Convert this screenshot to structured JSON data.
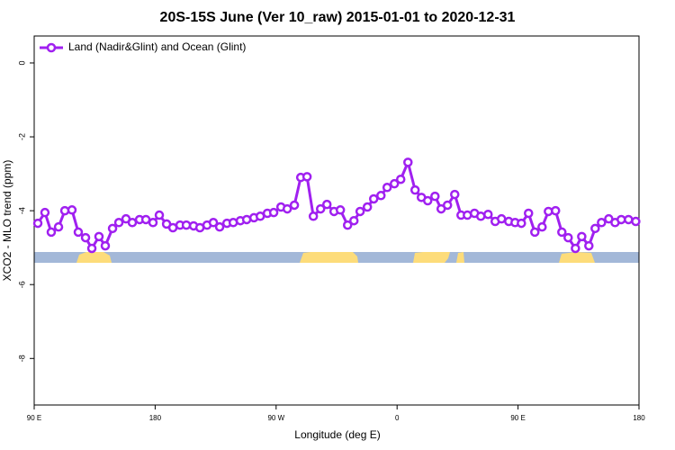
{
  "chart_data": {
    "type": "line",
    "title": "20S-15S June (Ver 10_raw)   2015-01-01 to 2020-12-31",
    "xlabel": "Longitude (deg E)",
    "ylabel": "XCO2 - MLO trend (ppm)",
    "xlim": [
      90,
      540
    ],
    "ylim": [
      -9.26,
      0.73
    ],
    "xticks": [
      {
        "value": 90,
        "label": "90 E"
      },
      {
        "value": 180,
        "label": "180"
      },
      {
        "value": 270,
        "label": "90 W"
      },
      {
        "value": 360,
        "label": "0"
      },
      {
        "value": 450,
        "label": "90 E"
      },
      {
        "value": 540,
        "label": "180"
      }
    ],
    "yticks": [
      0,
      -2,
      -4,
      -6,
      -8
    ],
    "legend": "upper left",
    "series": [
      {
        "name": "Land (Nadir&Glint) and Ocean (Glint)",
        "color": "#a020f0",
        "x": [
          92.7,
          98,
          102.7,
          108.1,
          112.8,
          118.1,
          122.8,
          128.2,
          132.9,
          138.2,
          142.9,
          148.3,
          153,
          158.3,
          163,
          168.4,
          173.1,
          178.4,
          183.1,
          188.5,
          193.2,
          198.5,
          203.2,
          208.6,
          213.3,
          218.6,
          223.3,
          228,
          233.4,
          238.1,
          243.4,
          248.1,
          253.5,
          258.2,
          263.5,
          268.2,
          273.6,
          278.3,
          283.6,
          288.3,
          293,
          297.7,
          303.1,
          307.8,
          313.1,
          317.8,
          323.2,
          327.9,
          332.5,
          337.9,
          342.6,
          348,
          352.6,
          358,
          362.7,
          368.1,
          373.4,
          378.1,
          382.8,
          388.2,
          392.8,
          397.5,
          402.9,
          407.6,
          412.3,
          417.6,
          422.3,
          427.7,
          433,
          437.7,
          443.1,
          447.8,
          452.5,
          457.8,
          462.5,
          467.9,
          472.6,
          477.9,
          482.6,
          487.3,
          492.7,
          497.4,
          502.7,
          507.4,
          512.1,
          517.5,
          522.2,
          526.8,
          532.2,
          537.6
        ],
        "values": [
          -4.34,
          -4.05,
          -4.58,
          -4.44,
          -4.0,
          -3.98,
          -4.58,
          -4.73,
          -5.02,
          -4.7,
          -4.95,
          -4.48,
          -4.32,
          -4.22,
          -4.32,
          -4.24,
          -4.24,
          -4.32,
          -4.12,
          -4.36,
          -4.46,
          -4.39,
          -4.39,
          -4.41,
          -4.46,
          -4.39,
          -4.32,
          -4.44,
          -4.34,
          -4.32,
          -4.27,
          -4.24,
          -4.19,
          -4.15,
          -4.07,
          -4.05,
          -3.9,
          -3.95,
          -3.85,
          -3.1,
          -3.08,
          -4.15,
          -3.95,
          -3.83,
          -4.02,
          -3.98,
          -4.39,
          -4.27,
          -4.02,
          -3.9,
          -3.68,
          -3.59,
          -3.37,
          -3.27,
          -3.15,
          -2.69,
          -3.44,
          -3.64,
          -3.73,
          -3.61,
          -3.95,
          -3.85,
          -3.56,
          -4.12,
          -4.12,
          -4.07,
          -4.15,
          -4.1,
          -4.29,
          -4.22,
          -4.29,
          -4.32,
          -4.34,
          -4.07,
          -4.58,
          -4.44,
          -4.02,
          -4.0,
          -4.58,
          -4.73,
          -5.02,
          -4.7,
          -4.95,
          -4.48,
          -4.32,
          -4.22,
          -4.32,
          -4.24,
          -4.24,
          -4.29
        ]
      }
    ]
  }
}
